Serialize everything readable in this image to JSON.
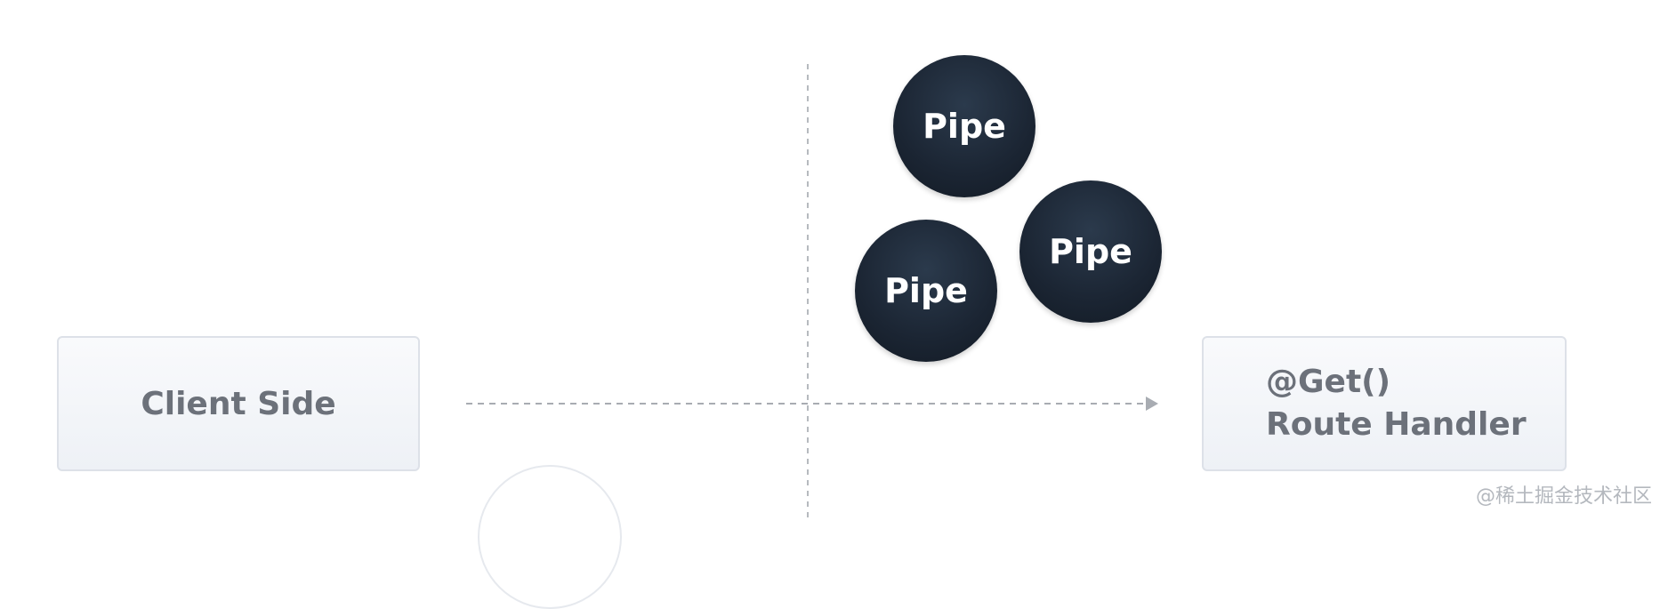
{
  "client": {
    "label": "Client Side"
  },
  "handler": {
    "line1": "@Get()",
    "line2": "Route Handler"
  },
  "pipes": [
    "Pipe",
    "Pipe",
    "Pipe"
  ],
  "watermark": "@稀土掘金技术社区",
  "colors": {
    "pipe_fill": "#1b2533",
    "box_fill": "#f1f3f7",
    "box_text": "#6c717a",
    "line": "#a8acb2"
  }
}
